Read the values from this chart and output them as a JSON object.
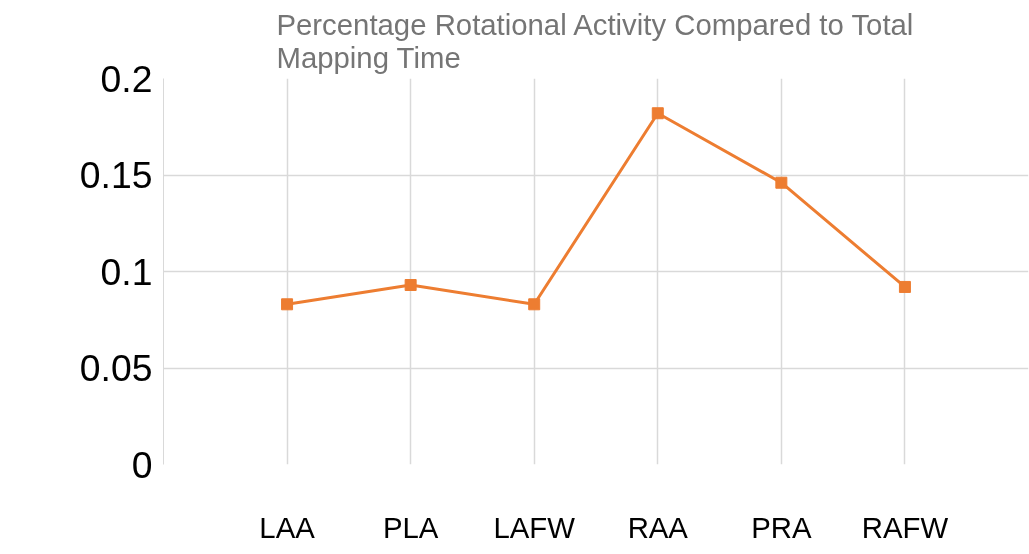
{
  "chart_data": {
    "type": "line",
    "title": "Percentage Rotational Activity Compared to Total Mapping Time",
    "categories": [
      "LAA",
      "PLA",
      "LAFW",
      "RAA",
      "PRA",
      "RAFW"
    ],
    "series": [
      {
        "color": "#ed7d31",
        "values": [
          0.083,
          0.093,
          0.083,
          0.182,
          0.146,
          0.092
        ]
      }
    ],
    "ylim": [
      0,
      0.2
    ],
    "yticks": [
      0,
      0.05,
      0.1,
      0.15,
      0.2
    ],
    "grid": true,
    "marker": "square",
    "line_style": "solid"
  }
}
